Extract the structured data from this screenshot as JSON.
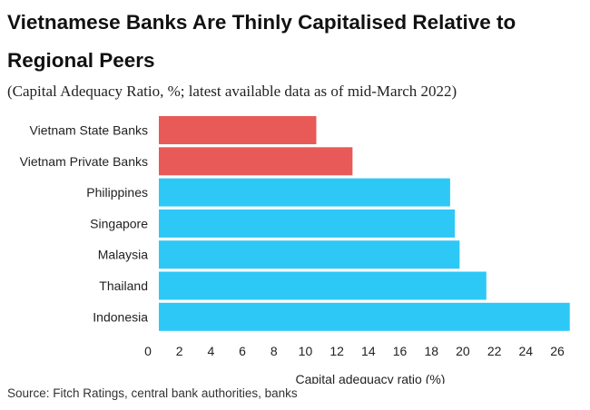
{
  "title": "Vietnamese Banks Are Thinly Capitalised Relative to Regional Peers",
  "subtitle": "(Capital Adequacy Ratio, %; latest available data as of mid-March 2022)",
  "source": "Source: Fitch Ratings, central bank authorities, banks",
  "colors": {
    "vietnam": "#e85a57",
    "peers": "#2ec8f6"
  },
  "chart_data": {
    "type": "bar",
    "orientation": "horizontal",
    "categories": [
      "Vietnam State Banks",
      "Vietnam Private Banks",
      "Philippines",
      "Singapore",
      "Malaysia",
      "Thailand",
      "Indonesia"
    ],
    "values": [
      10.0,
      12.3,
      18.5,
      18.8,
      19.1,
      20.8,
      26.1
    ],
    "bar_colors": [
      "#e85a57",
      "#e85a57",
      "#2ec8f6",
      "#2ec8f6",
      "#2ec8f6",
      "#2ec8f6",
      "#2ec8f6"
    ],
    "xlabel": "Capital adequacy ratio (%)",
    "ylabel": "",
    "xlim": [
      0,
      26
    ],
    "xticks": [
      0,
      2,
      4,
      6,
      8,
      10,
      12,
      14,
      16,
      18,
      20,
      22,
      24,
      26
    ],
    "grid": false,
    "legend": "none"
  }
}
